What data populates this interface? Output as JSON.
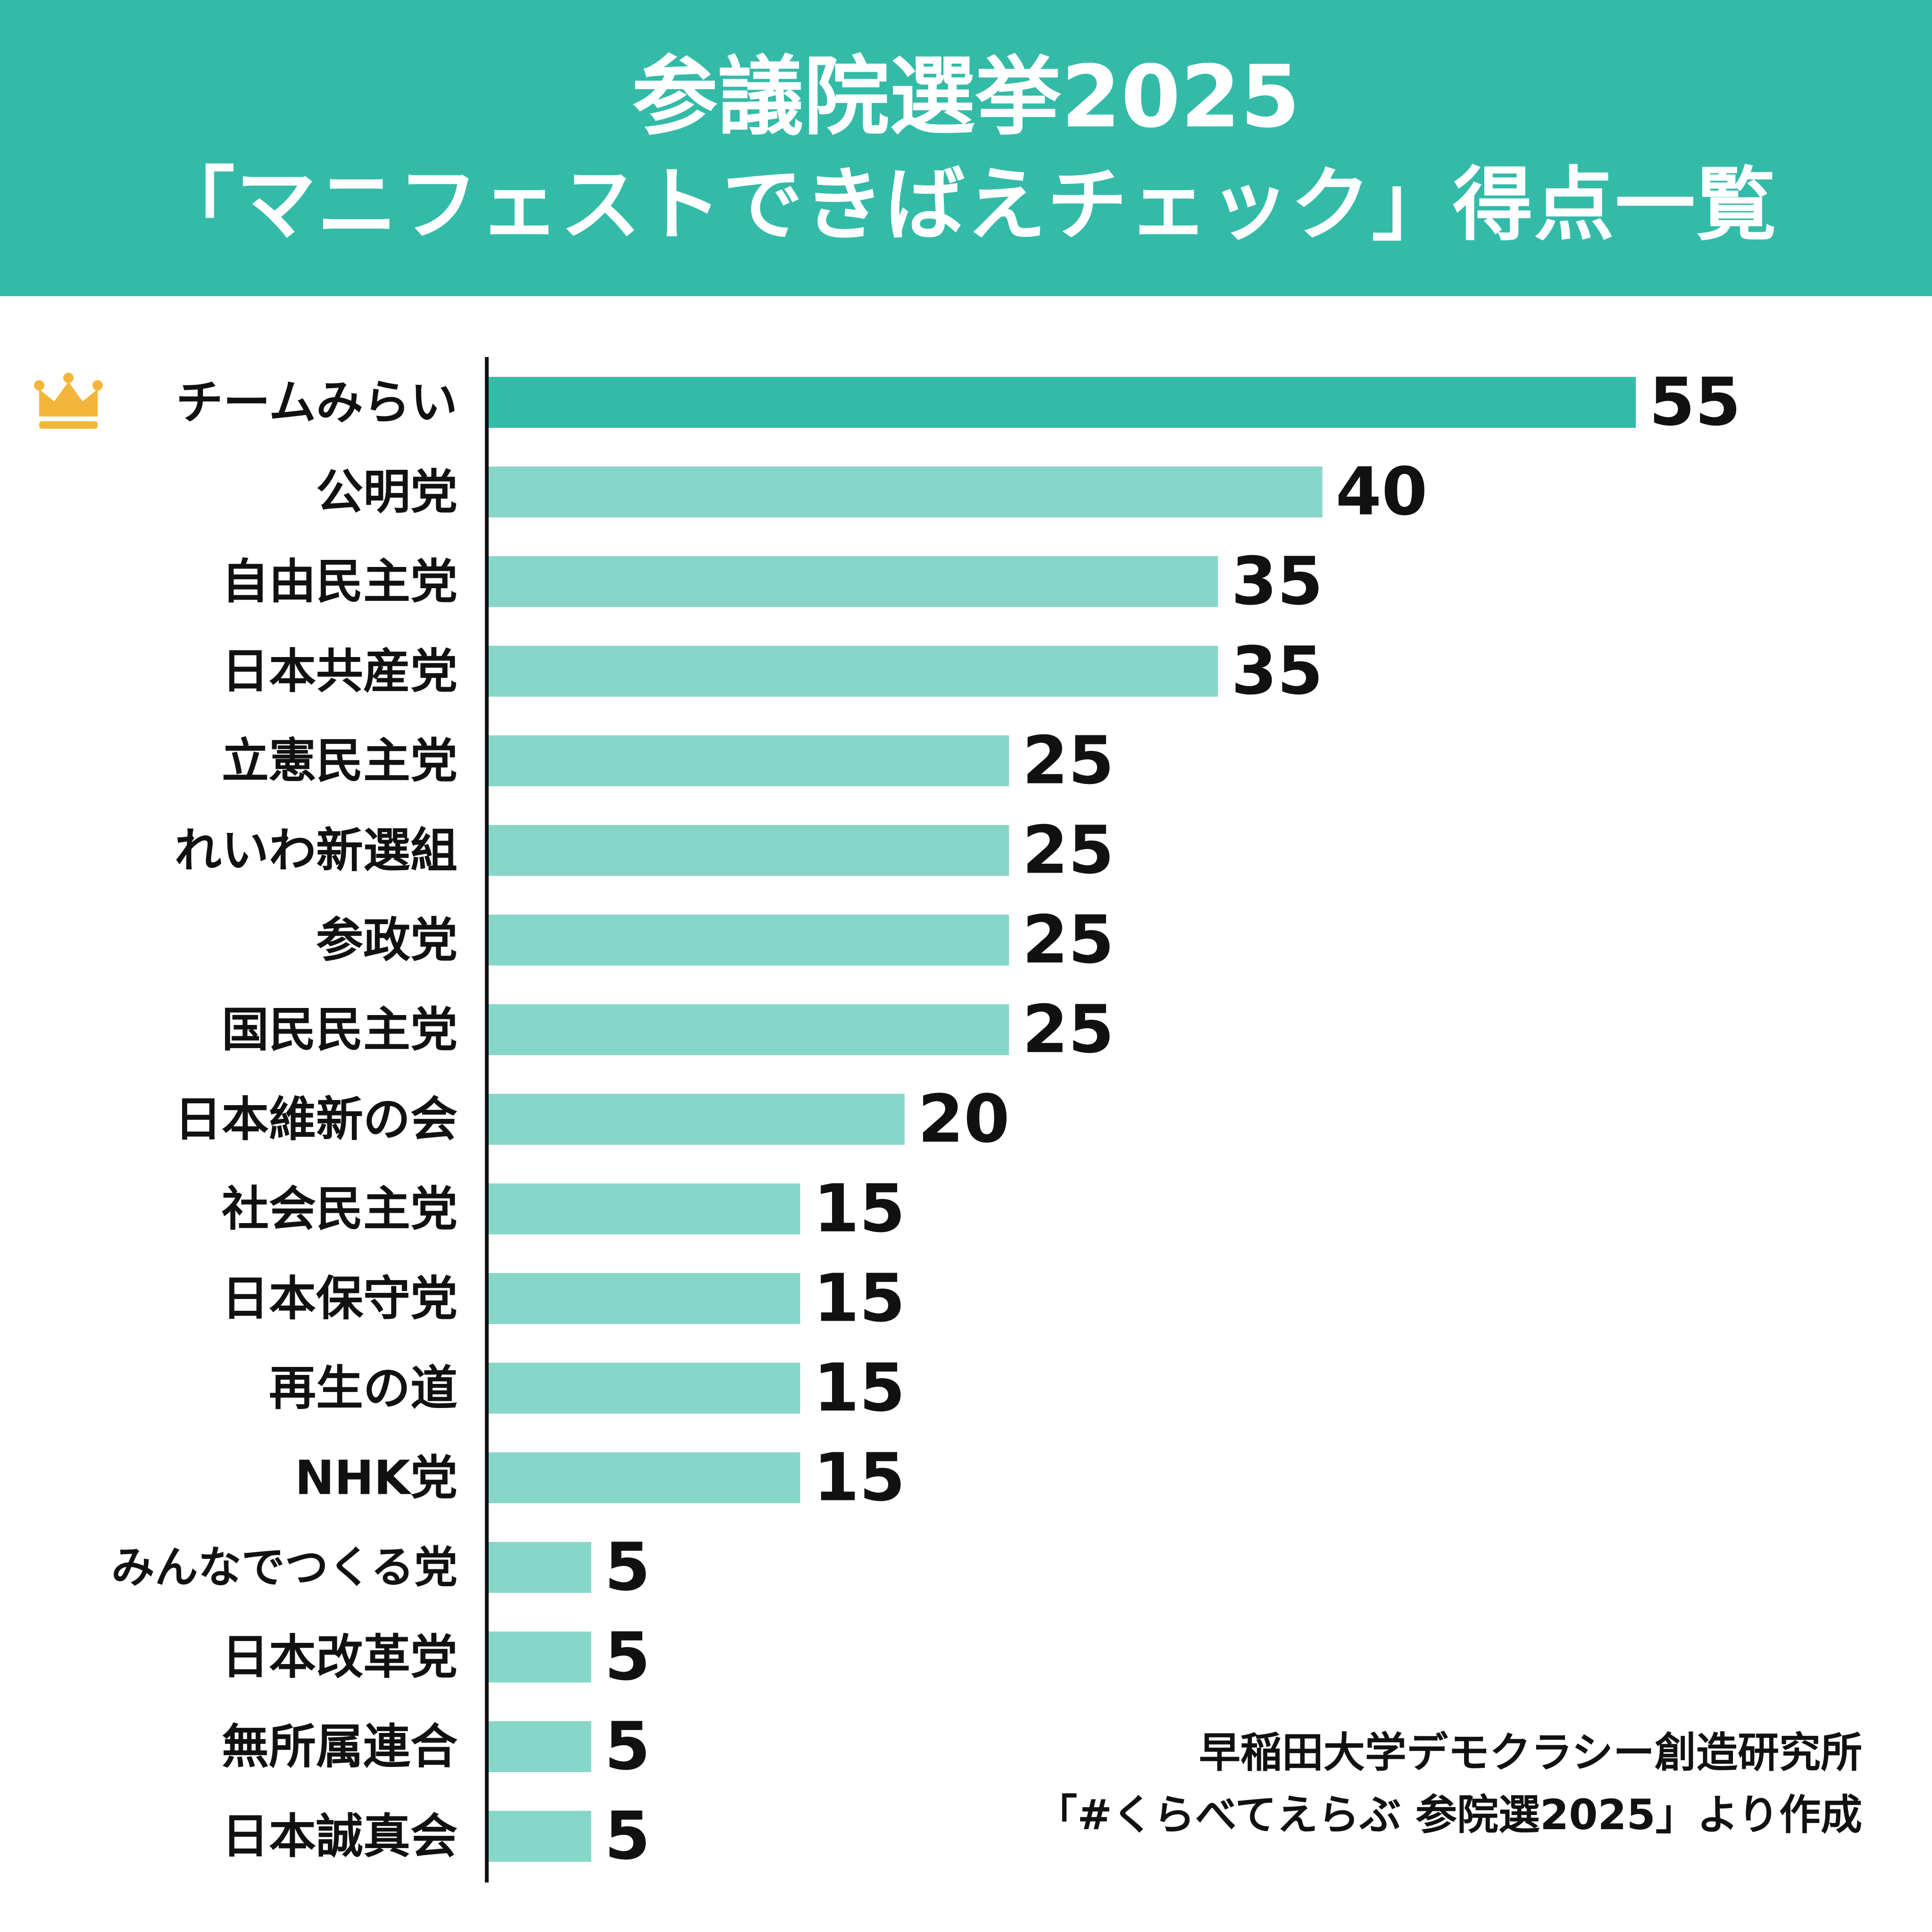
{
  "header": {
    "title_line1": "参議院選挙2025",
    "title_line2": "「マニフェストできばえチェック」得点一覧"
  },
  "colors": {
    "header_bg": "#33BBA8",
    "top_bar": "#33BBA8",
    "bar": "#86D7C9",
    "crown": "#F4B63A",
    "text": "#111111"
  },
  "chart_data": {
    "type": "bar",
    "orientation": "horizontal",
    "title": "参議院選挙2025 「マニフェストできばえチェック」得点一覧",
    "highlight_icon": "crown-icon",
    "categories": [
      "チームみらい",
      "公明党",
      "自由民主党",
      "日本共産党",
      "立憲民主党",
      "れいわ新選組",
      "参政党",
      "国民民主党",
      "日本維新の会",
      "社会民主党",
      "日本保守党",
      "再生の道",
      "NHK党",
      "みんなでつくる党",
      "日本改革党",
      "無所属連合",
      "日本誠真会"
    ],
    "values": [
      55,
      40,
      35,
      35,
      25,
      25,
      25,
      25,
      20,
      15,
      15,
      15,
      15,
      5,
      5,
      5,
      5
    ],
    "xlim": [
      0,
      55
    ],
    "grid": false,
    "xlabel": "",
    "ylabel": ""
  },
  "source": {
    "line1": "早稲田大学デモクラシー創造研究所",
    "line2": "「#くらべてえらぶ 参院選2025」より作成"
  }
}
